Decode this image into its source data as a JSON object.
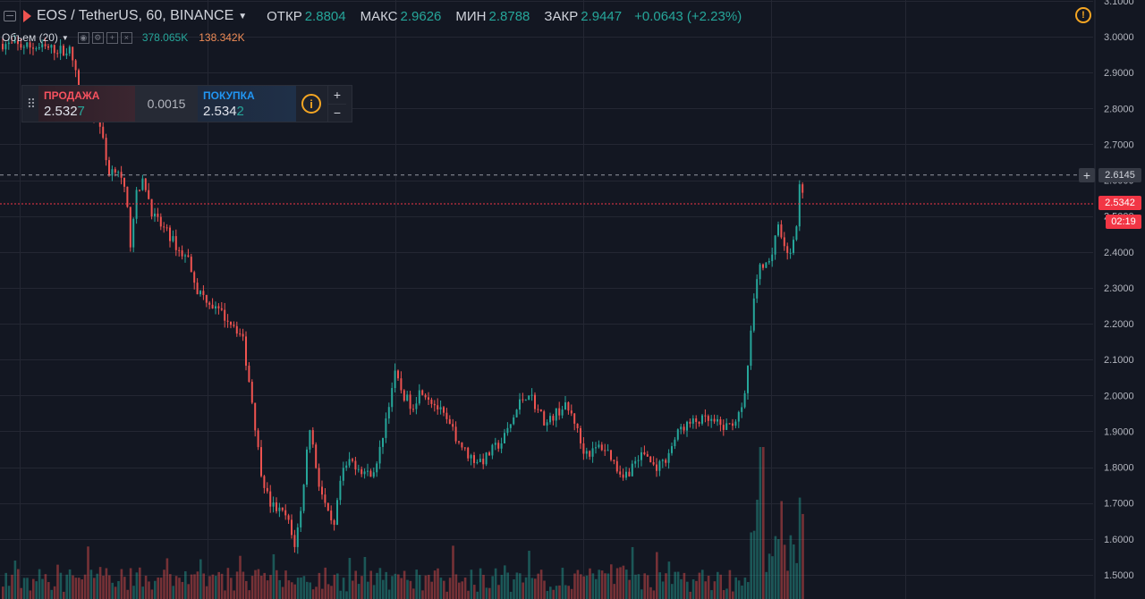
{
  "header": {
    "symbol": "EOS / TetherUS, 60, BINANCE",
    "open_label": "ОТКР",
    "open": "2.8804",
    "high_label": "МАКС",
    "high": "2.9626",
    "low_label": "МИН",
    "low": "2.8788",
    "close_label": "ЗАКР",
    "close": "2.9447",
    "change": "+0.0643 (+2.23%)"
  },
  "volume": {
    "label": "Объем (20)",
    "value1": "378.065K",
    "value2": "138.342K"
  },
  "trade_panel": {
    "sell_label": "ПРОДАЖА",
    "sell_main": "2.532",
    "sell_tail": "7",
    "spread": "0.0015",
    "buy_label": "ПОКУПКА",
    "buy_main": "2.534",
    "buy_tail": "2",
    "plus": "+",
    "minus": "−",
    "info": "i"
  },
  "price_labels": {
    "crosshair": "2.6145",
    "last": "2.5342",
    "timer": "02:19"
  },
  "colors": {
    "up": "#26a69a",
    "down": "#ef5350",
    "background": "#131722",
    "grid": "#242733",
    "last_line": "#f23645"
  },
  "chart_data": {
    "type": "candlestick",
    "yaxis_ticks": [
      "3.1000",
      "3.0000",
      "2.9000",
      "2.8000",
      "2.7000",
      "2.6000",
      "2.5000",
      "2.4000",
      "2.3000",
      "2.2000",
      "2.1000",
      "2.0000",
      "1.9000",
      "1.8000",
      "1.7000",
      "1.6000",
      "1.5000"
    ],
    "ylim": [
      1.47,
      3.11
    ],
    "crosshair_price": 2.6145,
    "last_price": 2.5342,
    "price_path": [
      [
        0,
        2.98
      ],
      [
        40,
        2.97
      ],
      [
        78,
        2.96
      ],
      [
        90,
        2.82
      ],
      [
        110,
        2.77
      ],
      [
        120,
        2.62
      ],
      [
        130,
        2.64
      ],
      [
        140,
        2.55
      ],
      [
        145,
        2.42
      ],
      [
        150,
        2.55
      ],
      [
        160,
        2.6
      ],
      [
        170,
        2.5
      ],
      [
        180,
        2.47
      ],
      [
        190,
        2.44
      ],
      [
        200,
        2.4
      ],
      [
        210,
        2.38
      ],
      [
        220,
        2.29
      ],
      [
        230,
        2.27
      ],
      [
        240,
        2.24
      ],
      [
        250,
        2.22
      ],
      [
        260,
        2.2
      ],
      [
        270,
        2.16
      ],
      [
        280,
        2.0
      ],
      [
        290,
        1.8
      ],
      [
        300,
        1.7
      ],
      [
        310,
        1.68
      ],
      [
        320,
        1.66
      ],
      [
        328,
        1.58
      ],
      [
        335,
        1.67
      ],
      [
        345,
        1.92
      ],
      [
        355,
        1.76
      ],
      [
        365,
        1.67
      ],
      [
        372,
        1.62
      ],
      [
        380,
        1.77
      ],
      [
        390,
        1.82
      ],
      [
        400,
        1.8
      ],
      [
        410,
        1.78
      ],
      [
        420,
        1.8
      ],
      [
        430,
        1.93
      ],
      [
        440,
        2.06
      ],
      [
        450,
        2.0
      ],
      [
        460,
        1.97
      ],
      [
        470,
        2.02
      ],
      [
        480,
        1.99
      ],
      [
        490,
        1.96
      ],
      [
        500,
        1.92
      ],
      [
        510,
        1.88
      ],
      [
        520,
        1.84
      ],
      [
        530,
        1.82
      ],
      [
        540,
        1.82
      ],
      [
        550,
        1.85
      ],
      [
        560,
        1.87
      ],
      [
        570,
        1.92
      ],
      [
        580,
        1.98
      ],
      [
        590,
        2.01
      ],
      [
        600,
        1.96
      ],
      [
        610,
        1.92
      ],
      [
        620,
        1.95
      ],
      [
        630,
        1.97
      ],
      [
        640,
        1.94
      ],
      [
        650,
        1.85
      ],
      [
        660,
        1.84
      ],
      [
        670,
        1.86
      ],
      [
        680,
        1.84
      ],
      [
        690,
        1.79
      ],
      [
        700,
        1.78
      ],
      [
        710,
        1.82
      ],
      [
        720,
        1.84
      ],
      [
        730,
        1.8
      ],
      [
        740,
        1.81
      ],
      [
        750,
        1.86
      ],
      [
        760,
        1.91
      ],
      [
        770,
        1.92
      ],
      [
        780,
        1.93
      ],
      [
        790,
        1.93
      ],
      [
        800,
        1.92
      ],
      [
        810,
        1.91
      ],
      [
        820,
        1.93
      ],
      [
        830,
        1.96
      ],
      [
        836,
        2.1
      ],
      [
        840,
        2.22
      ],
      [
        845,
        2.33
      ],
      [
        850,
        2.36
      ],
      [
        860,
        2.38
      ],
      [
        868,
        2.48
      ],
      [
        875,
        2.44
      ],
      [
        880,
        2.38
      ],
      [
        885,
        2.43
      ],
      [
        890,
        2.48
      ],
      [
        894,
        2.63
      ],
      [
        897,
        2.53
      ]
    ]
  }
}
